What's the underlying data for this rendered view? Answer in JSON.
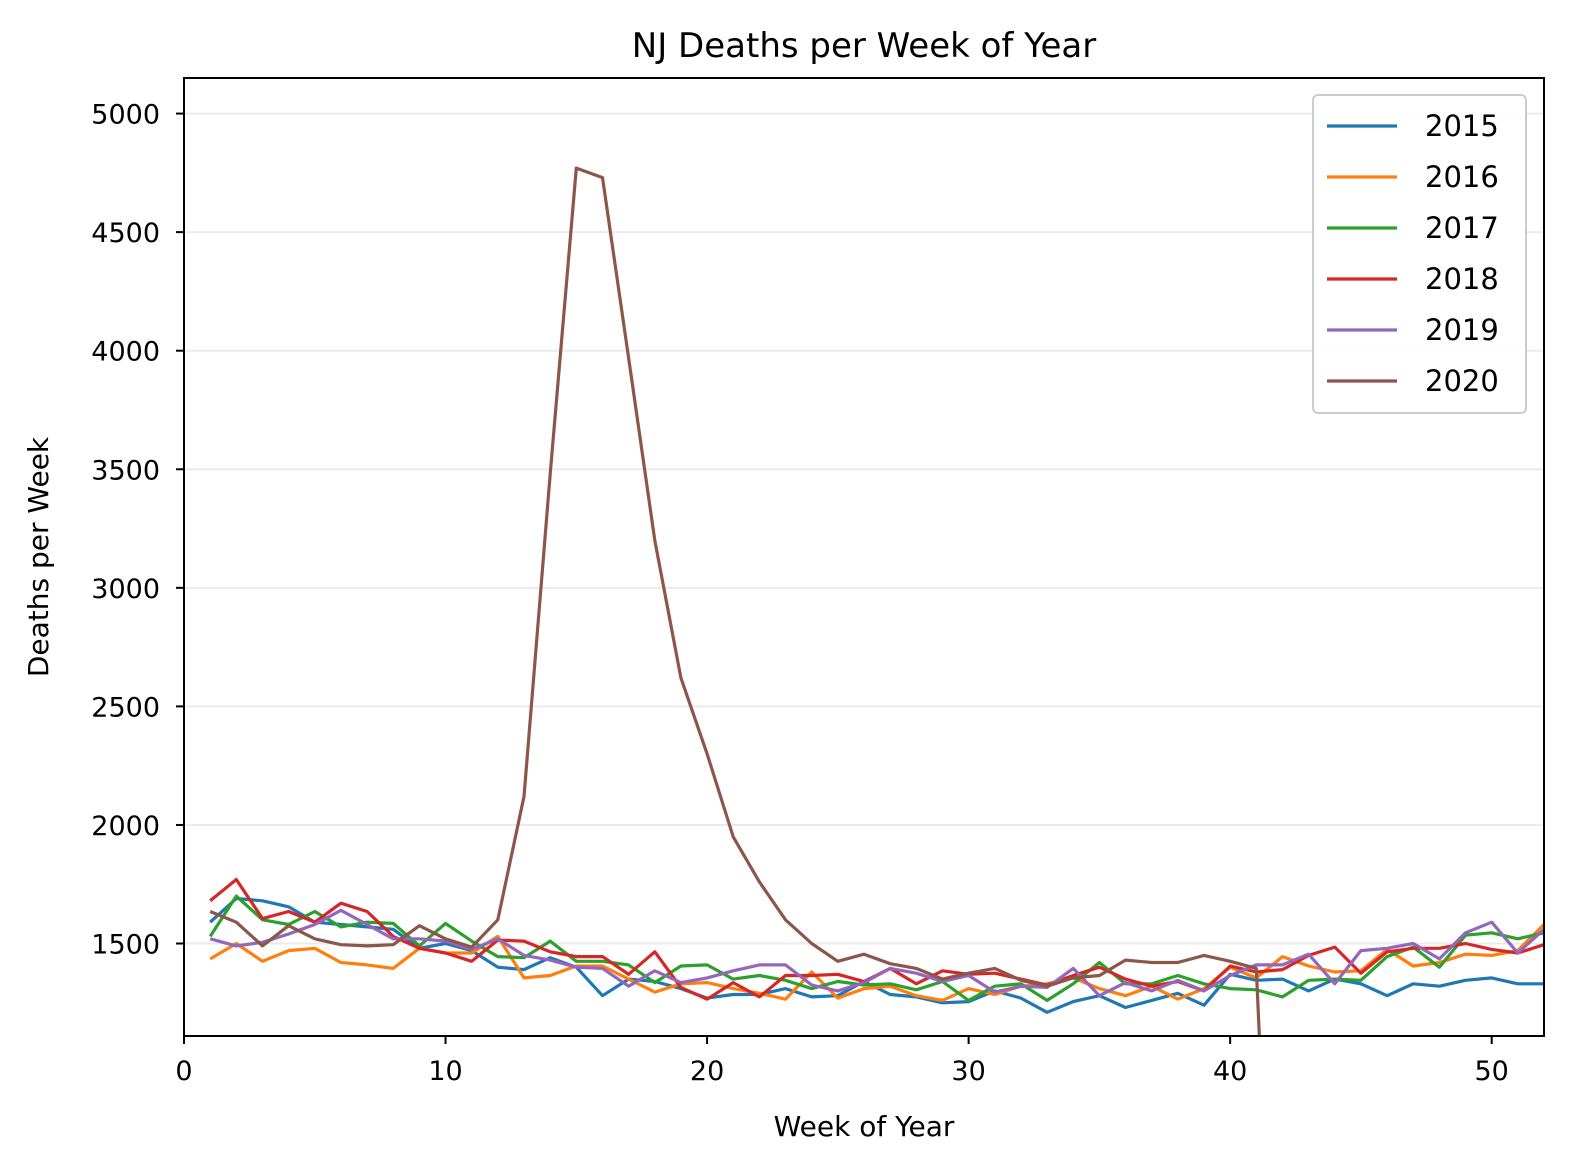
{
  "chart_data": {
    "type": "line",
    "title": "NJ Deaths per Week of Year",
    "xlabel": "Week of Year",
    "ylabel": "Deaths per Week",
    "xlim": [
      0,
      52
    ],
    "ylim": [
      1110,
      5150
    ],
    "xticks": [
      0,
      10,
      20,
      30,
      40,
      50
    ],
    "yticks": [
      1500,
      2000,
      2500,
      3000,
      3500,
      4000,
      4500,
      5000
    ],
    "grid": "horizontal",
    "legend_position": "top-right",
    "x": [
      1,
      2,
      3,
      4,
      5,
      6,
      7,
      8,
      9,
      10,
      11,
      12,
      13,
      14,
      15,
      16,
      17,
      18,
      19,
      20,
      21,
      22,
      23,
      24,
      25,
      26,
      27,
      28,
      29,
      30,
      31,
      32,
      33,
      34,
      35,
      36,
      37,
      38,
      39,
      40,
      41,
      42,
      43,
      44,
      45,
      46,
      47,
      48,
      49,
      50,
      51,
      52
    ],
    "series": [
      {
        "name": "2015",
        "color": "#1f77b4",
        "values": [
          1590,
          1690,
          1680,
          1655,
          1590,
          1580,
          1570,
          1560,
          1480,
          1500,
          1470,
          1400,
          1390,
          1440,
          1400,
          1280,
          1350,
          1340,
          1310,
          1270,
          1285,
          1285,
          1310,
          1275,
          1280,
          1340,
          1285,
          1275,
          1250,
          1255,
          1300,
          1270,
          1210,
          1255,
          1280,
          1230,
          1260,
          1290,
          1240,
          1370,
          1345,
          1350,
          1300,
          1350,
          1330,
          1280,
          1330,
          1320,
          1345,
          1355,
          1330,
          1330
        ]
      },
      {
        "name": "2016",
        "color": "#ff7f0e",
        "values": [
          1435,
          1500,
          1425,
          1470,
          1480,
          1420,
          1410,
          1395,
          1480,
          1460,
          1460,
          1530,
          1355,
          1365,
          1405,
          1405,
          1350,
          1295,
          1330,
          1335,
          1310,
          1290,
          1265,
          1380,
          1270,
          1310,
          1320,
          1280,
          1260,
          1310,
          1285,
          1320,
          1330,
          1355,
          1310,
          1280,
          1320,
          1265,
          1310,
          1400,
          1355,
          1445,
          1405,
          1380,
          1385,
          1475,
          1405,
          1420,
          1455,
          1450,
          1470,
          1580
        ]
      },
      {
        "name": "2017",
        "color": "#2ca02c",
        "values": [
          1530,
          1700,
          1600,
          1580,
          1635,
          1570,
          1590,
          1585,
          1490,
          1585,
          1510,
          1445,
          1440,
          1510,
          1425,
          1425,
          1410,
          1335,
          1405,
          1410,
          1350,
          1365,
          1345,
          1310,
          1340,
          1325,
          1330,
          1305,
          1340,
          1260,
          1320,
          1330,
          1260,
          1330,
          1420,
          1330,
          1330,
          1365,
          1330,
          1310,
          1305,
          1275,
          1345,
          1350,
          1345,
          1445,
          1485,
          1400,
          1535,
          1545,
          1520,
          1545
        ]
      },
      {
        "name": "2018",
        "color": "#d62728",
        "values": [
          1680,
          1770,
          1605,
          1635,
          1590,
          1670,
          1635,
          1530,
          1480,
          1460,
          1425,
          1515,
          1510,
          1465,
          1445,
          1445,
          1370,
          1465,
          1315,
          1265,
          1335,
          1275,
          1365,
          1365,
          1370,
          1340,
          1395,
          1330,
          1385,
          1370,
          1375,
          1350,
          1325,
          1365,
          1400,
          1350,
          1320,
          1340,
          1300,
          1405,
          1380,
          1390,
          1450,
          1485,
          1375,
          1465,
          1480,
          1480,
          1500,
          1475,
          1460,
          1495
        ]
      },
      {
        "name": "2019",
        "color": "#9467bd",
        "values": [
          1520,
          1490,
          1505,
          1540,
          1580,
          1640,
          1580,
          1520,
          1520,
          1510,
          1475,
          1520,
          1450,
          1430,
          1400,
          1395,
          1320,
          1385,
          1335,
          1355,
          1385,
          1410,
          1410,
          1325,
          1300,
          1335,
          1395,
          1375,
          1340,
          1365,
          1295,
          1320,
          1315,
          1395,
          1280,
          1335,
          1300,
          1345,
          1300,
          1365,
          1410,
          1410,
          1455,
          1330,
          1470,
          1480,
          1500,
          1435,
          1545,
          1590,
          1460,
          1560
        ]
      },
      {
        "name": "2020",
        "color": "#8c564b",
        "values": [
          1635,
          1590,
          1490,
          1575,
          1520,
          1495,
          1490,
          1495,
          1575,
          1520,
          1485,
          1600,
          2120,
          3480,
          4770,
          4730,
          3970,
          3200,
          2620,
          2300,
          1950,
          1760,
          1600,
          1500,
          1425,
          1455,
          1415,
          1395,
          1350,
          1375,
          1395,
          1345,
          1320,
          1355,
          1365,
          1430,
          1420,
          1420,
          1450,
          1425,
          1395,
          null,
          null,
          null,
          null,
          null,
          null,
          null,
          null,
          null,
          null,
          null
        ],
        "drop_to_x": 41.2
      }
    ]
  }
}
